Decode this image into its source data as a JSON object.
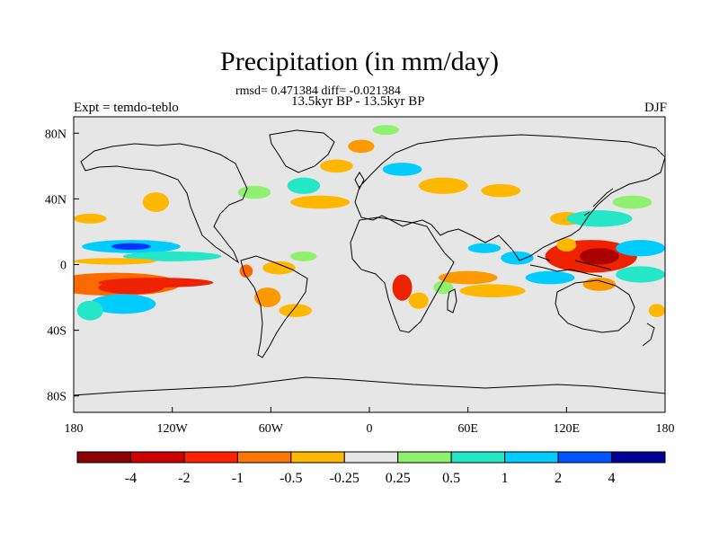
{
  "title": "Precipitation (in mm/day)",
  "stats": "rmsd= 0.471384 diff= -0.021384",
  "subtitle": "13.5kyr BP - 13.5kyr BP",
  "left_label": "Expt = temdo-teblo",
  "right_label": "DJF",
  "map": {
    "lon_range": [
      -180,
      180
    ],
    "lat_range": [
      -90,
      90
    ],
    "background_color": "#e6e6e6",
    "lon_ticks": [
      {
        "value": -180,
        "label": "180"
      },
      {
        "value": -120,
        "label": "120W"
      },
      {
        "value": -60,
        "label": "60W"
      },
      {
        "value": 0,
        "label": "0"
      },
      {
        "value": 60,
        "label": "60E"
      },
      {
        "value": 120,
        "label": "120E"
      },
      {
        "value": 180,
        "label": "180"
      }
    ],
    "lat_ticks": [
      {
        "value": 80,
        "label": "80N"
      },
      {
        "value": 40,
        "label": "40N"
      },
      {
        "value": 0,
        "label": "0"
      },
      {
        "value": -40,
        "label": "40S"
      },
      {
        "value": -80,
        "label": "80S"
      }
    ],
    "blobs": [
      {
        "lon": -155,
        "lat": -12,
        "rlon": 40,
        "rlat": 7,
        "color": "#ff6a00"
      },
      {
        "lon": -145,
        "lat": -14,
        "rlon": 20,
        "rlat": 4,
        "color": "#ef2200"
      },
      {
        "lon": -130,
        "lat": -11,
        "rlon": 35,
        "rlat": 3,
        "color": "#ef2200"
      },
      {
        "lon": -150,
        "lat": -24,
        "rlon": 20,
        "rlat": 6,
        "color": "#00ccff"
      },
      {
        "lon": -170,
        "lat": -28,
        "rlon": 8,
        "rlat": 6,
        "color": "#26e6c8"
      },
      {
        "lon": -145,
        "lat": 11,
        "rlon": 30,
        "rlat": 4,
        "color": "#00ccff"
      },
      {
        "lon": -145,
        "lat": 11,
        "rlon": 12,
        "rlat": 2,
        "color": "#0033ff"
      },
      {
        "lon": -120,
        "lat": 5,
        "rlon": 30,
        "rlat": 3,
        "color": "#26e6c8"
      },
      {
        "lon": -170,
        "lat": 28,
        "rlon": 10,
        "rlat": 3,
        "color": "#ffb700"
      },
      {
        "lon": -130,
        "lat": 38,
        "rlon": 8,
        "rlat": 6,
        "color": "#ffb700"
      },
      {
        "lon": -155,
        "lat": 2,
        "rlon": 25,
        "rlat": 2,
        "color": "#ffb700"
      },
      {
        "lon": -75,
        "lat": -4,
        "rlon": 4,
        "rlat": 4,
        "color": "#ff6a00"
      },
      {
        "lon": -55,
        "lat": -2,
        "rlon": 10,
        "rlat": 4,
        "color": "#ffb700"
      },
      {
        "lon": -62,
        "lat": -20,
        "rlon": 8,
        "rlat": 6,
        "color": "#ff9900"
      },
      {
        "lon": -45,
        "lat": -28,
        "rlon": 10,
        "rlat": 4,
        "color": "#ffb700"
      },
      {
        "lon": -40,
        "lat": 5,
        "rlon": 8,
        "rlat": 3,
        "color": "#90f070"
      },
      {
        "lon": -30,
        "lat": 38,
        "rlon": 18,
        "rlat": 4,
        "color": "#ffb700"
      },
      {
        "lon": -40,
        "lat": 48,
        "rlon": 10,
        "rlat": 5,
        "color": "#26e6c8"
      },
      {
        "lon": -70,
        "lat": 44,
        "rlon": 10,
        "rlat": 4,
        "color": "#90f070"
      },
      {
        "lon": -20,
        "lat": 60,
        "rlon": 10,
        "rlat": 4,
        "color": "#ffb700"
      },
      {
        "lon": -5,
        "lat": 72,
        "rlon": 8,
        "rlat": 4,
        "color": "#ff9900"
      },
      {
        "lon": 10,
        "lat": 82,
        "rlon": 8,
        "rlat": 3,
        "color": "#90f070"
      },
      {
        "lon": 20,
        "lat": 58,
        "rlon": 12,
        "rlat": 4,
        "color": "#00ccff"
      },
      {
        "lon": 45,
        "lat": 48,
        "rlon": 15,
        "rlat": 5,
        "color": "#ffb700"
      },
      {
        "lon": 80,
        "lat": 45,
        "rlon": 12,
        "rlat": 4,
        "color": "#ffb700"
      },
      {
        "lon": 20,
        "lat": -14,
        "rlon": 6,
        "rlat": 8,
        "color": "#ef2200"
      },
      {
        "lon": 30,
        "lat": -22,
        "rlon": 6,
        "rlat": 5,
        "color": "#ffb700"
      },
      {
        "lon": 45,
        "lat": -14,
        "rlon": 6,
        "rlat": 4,
        "color": "#90f070"
      },
      {
        "lon": 60,
        "lat": -8,
        "rlon": 18,
        "rlat": 4,
        "color": "#ff9900"
      },
      {
        "lon": 75,
        "lat": -16,
        "rlon": 20,
        "rlat": 4,
        "color": "#ffb700"
      },
      {
        "lon": 90,
        "lat": 4,
        "rlon": 10,
        "rlat": 4,
        "color": "#00ccff"
      },
      {
        "lon": 110,
        "lat": -8,
        "rlon": 15,
        "rlat": 4,
        "color": "#00ccff"
      },
      {
        "lon": 135,
        "lat": 5,
        "rlon": 28,
        "rlat": 10,
        "color": "#ef2200"
      },
      {
        "lon": 140,
        "lat": 5,
        "rlon": 12,
        "rlat": 5,
        "color": "#aa0000"
      },
      {
        "lon": 165,
        "lat": 10,
        "rlon": 15,
        "rlat": 5,
        "color": "#00ccff"
      },
      {
        "lon": 165,
        "lat": -6,
        "rlon": 15,
        "rlat": 5,
        "color": "#26e6c8"
      },
      {
        "lon": 140,
        "lat": -12,
        "rlon": 10,
        "rlat": 4,
        "color": "#ff9900"
      },
      {
        "lon": 120,
        "lat": 28,
        "rlon": 10,
        "rlat": 4,
        "color": "#ffb700"
      },
      {
        "lon": 140,
        "lat": 28,
        "rlon": 20,
        "rlat": 5,
        "color": "#26e6c8"
      },
      {
        "lon": 160,
        "lat": 38,
        "rlon": 12,
        "rlat": 4,
        "color": "#90f070"
      },
      {
        "lon": 70,
        "lat": 10,
        "rlon": 10,
        "rlat": 3,
        "color": "#00ccff"
      },
      {
        "lon": 120,
        "lat": 12,
        "rlon": 6,
        "rlat": 4,
        "color": "#ffb700"
      },
      {
        "lon": 175,
        "lat": -28,
        "rlon": 5,
        "rlat": 4,
        "color": "#ffb700"
      }
    ]
  },
  "colorbar": {
    "colors": [
      "#8b0000",
      "#cc0000",
      "#ff2200",
      "#ff7700",
      "#ffb700",
      "#e6e6e6",
      "#90f070",
      "#26e6c8",
      "#00ccff",
      "#0055ff",
      "#000099"
    ],
    "labels": [
      "-4",
      "-2",
      "-1",
      "-0.5",
      "-0.25",
      "0.25",
      "0.5",
      "1",
      "2",
      "4"
    ]
  }
}
